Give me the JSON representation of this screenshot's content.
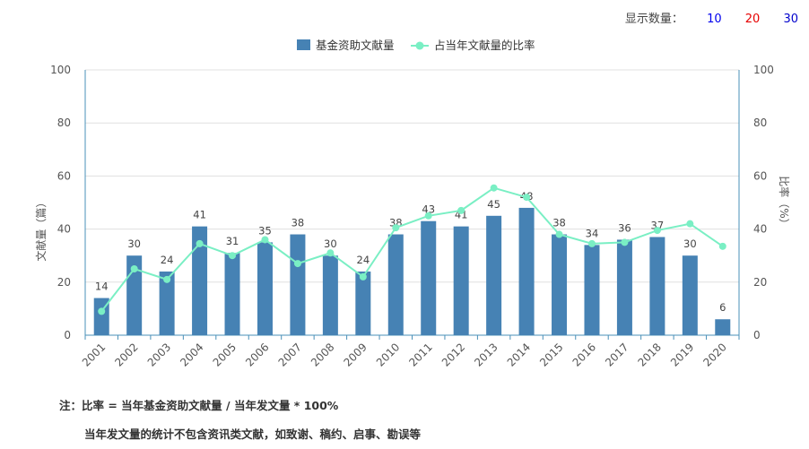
{
  "controls": {
    "label": "显示数量：",
    "options": [
      {
        "label": "10",
        "color": "#0000ee"
      },
      {
        "label": "20",
        "color": "#e60000"
      },
      {
        "label": "30",
        "color": "#0000cc"
      }
    ]
  },
  "notes": {
    "line1": "注：比率 = 当年基金资助文献量 / 当年发文量 * 100%",
    "line2": "当年发文量的统计不包含资讯类文献，如致谢、稿约、启事、勘误等"
  },
  "chart_data": {
    "type": "bar",
    "categories": [
      "2001",
      "2002",
      "2003",
      "2004",
      "2005",
      "2006",
      "2007",
      "2008",
      "2009",
      "2010",
      "2011",
      "2012",
      "2013",
      "2014",
      "2015",
      "2016",
      "2017",
      "2018",
      "2019",
      "2020"
    ],
    "series": [
      {
        "name": "基金资助文献量",
        "type": "bar",
        "axis": "left",
        "color": "#4682b4",
        "values": [
          14,
          30,
          24,
          41,
          31,
          35,
          38,
          30,
          24,
          38,
          43,
          41,
          45,
          48,
          38,
          34,
          36,
          37,
          30,
          6
        ]
      },
      {
        "name": "占当年文献量的比率",
        "type": "line",
        "axis": "right",
        "color": "#7aefc4",
        "values": [
          9,
          25,
          21,
          34.5,
          30,
          36,
          27,
          31,
          22,
          40.5,
          45,
          47,
          55.5,
          52,
          38,
          34.5,
          35,
          39.5,
          42,
          33.5
        ]
      }
    ],
    "ylabel_left": "文献量（篇）",
    "ylabel_right": "比率（%）",
    "ylim_left": [
      0,
      100
    ],
    "ylim_right": [
      0,
      100
    ],
    "yticks": [
      "0",
      "20",
      "40",
      "60",
      "80",
      "100"
    ],
    "grid": true,
    "legend_position": "top-center"
  }
}
